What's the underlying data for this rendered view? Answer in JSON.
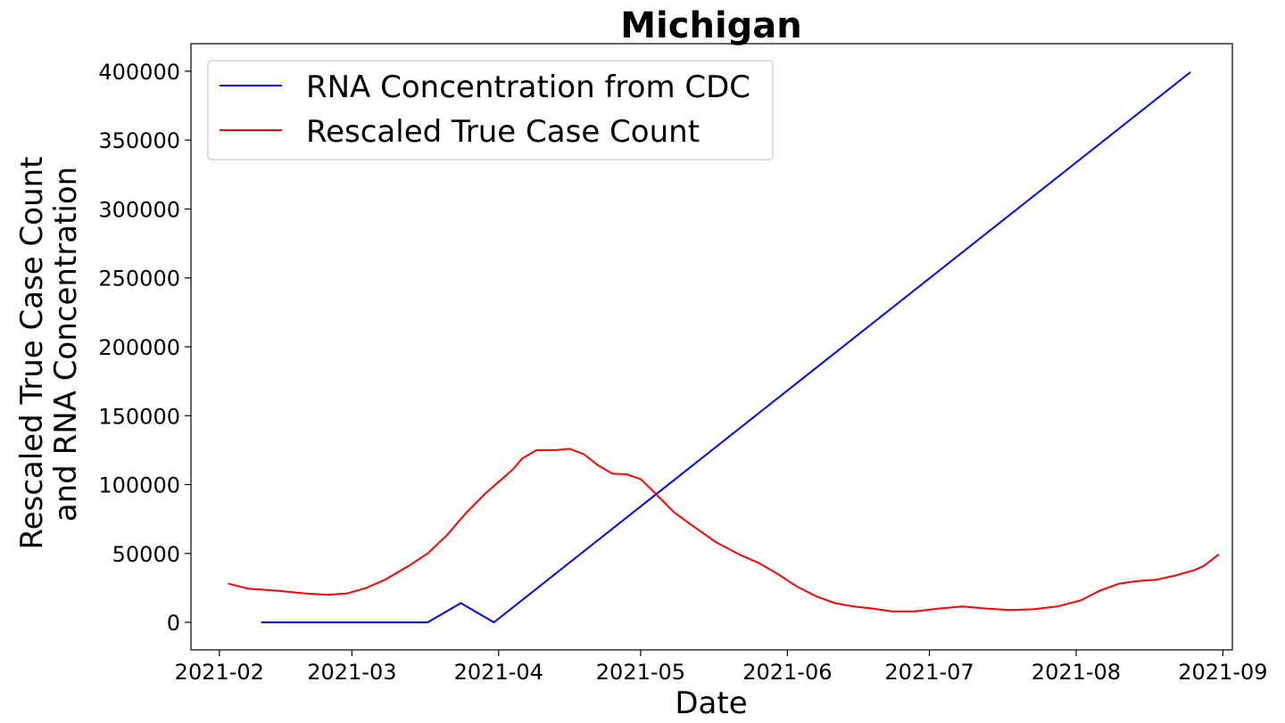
{
  "chart_data": {
    "type": "line",
    "title": "Michigan",
    "xlabel": "Date",
    "ylabel": [
      "Rescaled True Case Count",
      "and RNA Concentration"
    ],
    "x_axis_type": "date",
    "xlim": [
      "2021-01-26",
      "2021-09-03"
    ],
    "ylim": [
      -20000,
      420000
    ],
    "x_ticks": [
      "2021-02",
      "2021-03",
      "2021-04",
      "2021-05",
      "2021-06",
      "2021-07",
      "2021-08",
      "2021-09"
    ],
    "y_ticks": [
      "0",
      "50000",
      "100000",
      "150000",
      "200000",
      "250000",
      "300000",
      "350000",
      "400000"
    ],
    "y_tick_values": [
      0,
      50000,
      100000,
      150000,
      200000,
      250000,
      300000,
      350000,
      400000
    ],
    "grid": false,
    "legend_position": "top-left",
    "series": [
      {
        "name": "RNA Concentration from CDC",
        "color": "#0000ff",
        "points": [
          [
            "2021-02-10",
            0
          ],
          [
            "2021-03-17",
            0
          ],
          [
            "2021-03-24",
            14000
          ],
          [
            "2021-03-31",
            0
          ],
          [
            "2021-08-25",
            399000
          ]
        ]
      },
      {
        "name": "Rescaled True Case Count",
        "color": "#ff0000",
        "points": [
          [
            "2021-02-03",
            28000
          ],
          [
            "2021-02-07",
            24500
          ],
          [
            "2021-02-13",
            23000
          ],
          [
            "2021-02-19",
            21000
          ],
          [
            "2021-02-24",
            20000
          ],
          [
            "2021-02-28",
            21000
          ],
          [
            "2021-03-04",
            25000
          ],
          [
            "2021-03-08",
            31000
          ],
          [
            "2021-03-13",
            41000
          ],
          [
            "2021-03-17",
            50000
          ],
          [
            "2021-03-21",
            63000
          ],
          [
            "2021-03-25",
            79000
          ],
          [
            "2021-03-29",
            93000
          ],
          [
            "2021-04-01",
            102000
          ],
          [
            "2021-04-04",
            111000
          ],
          [
            "2021-04-06",
            119000
          ],
          [
            "2021-04-09",
            125000
          ],
          [
            "2021-04-13",
            125000
          ],
          [
            "2021-04-16",
            126000
          ],
          [
            "2021-04-19",
            122000
          ],
          [
            "2021-04-22",
            114000
          ],
          [
            "2021-04-25",
            108000
          ],
          [
            "2021-04-28",
            107500
          ],
          [
            "2021-05-01",
            104000
          ],
          [
            "2021-05-04",
            94000
          ],
          [
            "2021-05-08",
            80000
          ],
          [
            "2021-05-12",
            70000
          ],
          [
            "2021-05-17",
            58000
          ],
          [
            "2021-05-22",
            49000
          ],
          [
            "2021-05-26",
            43000
          ],
          [
            "2021-05-30",
            35000
          ],
          [
            "2021-06-03",
            26000
          ],
          [
            "2021-06-07",
            19000
          ],
          [
            "2021-06-11",
            14000
          ],
          [
            "2021-06-15",
            11500
          ],
          [
            "2021-06-19",
            10000
          ],
          [
            "2021-06-23",
            8000
          ],
          [
            "2021-06-28",
            8000
          ],
          [
            "2021-07-03",
            10000
          ],
          [
            "2021-07-08",
            11500
          ],
          [
            "2021-07-13",
            10000
          ],
          [
            "2021-07-18",
            9000
          ],
          [
            "2021-07-23",
            9500
          ],
          [
            "2021-07-28",
            11500
          ],
          [
            "2021-08-02",
            16000
          ],
          [
            "2021-08-06",
            23000
          ],
          [
            "2021-08-10",
            28000
          ],
          [
            "2021-08-14",
            30000
          ],
          [
            "2021-08-18",
            31000
          ],
          [
            "2021-08-22",
            34000
          ],
          [
            "2021-08-26",
            38000
          ],
          [
            "2021-08-28",
            41000
          ],
          [
            "2021-08-31",
            49000
          ]
        ]
      }
    ]
  }
}
